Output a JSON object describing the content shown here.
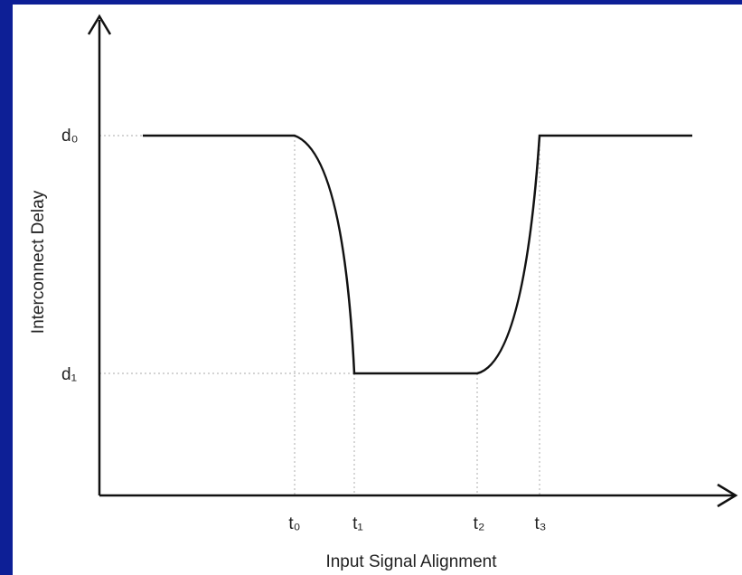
{
  "y_axis_label": "Interconnect Delay",
  "x_axis_label": "Input Signal Alignment",
  "y_levels": [
    "d₀",
    "d₁"
  ],
  "x_points": [
    "t₀",
    "t₁",
    "t₂",
    "t₃"
  ]
}
